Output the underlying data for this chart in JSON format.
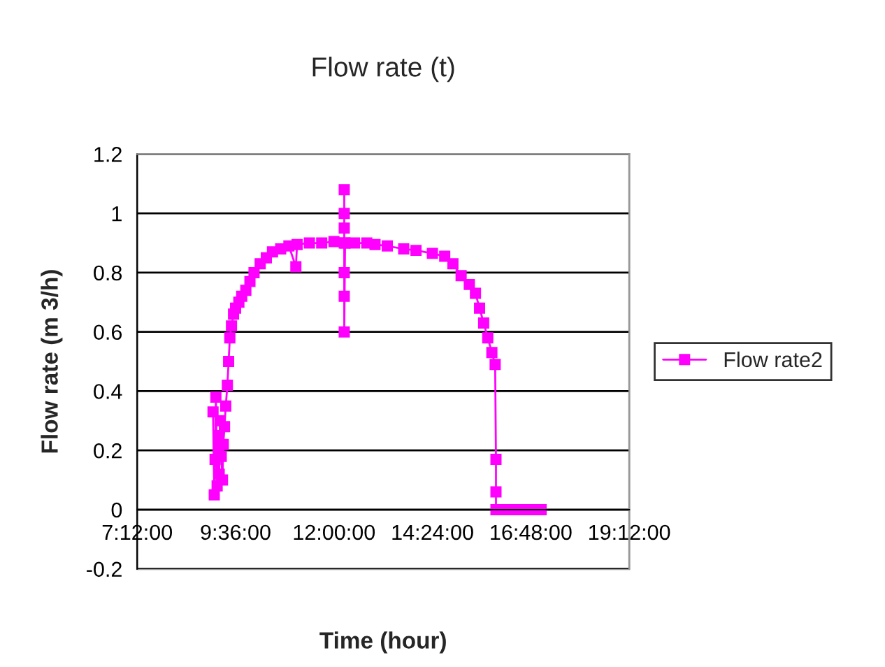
{
  "chart_data": {
    "type": "line",
    "title": "Flow rate (t)",
    "xlabel": "Time (hour)",
    "ylabel": "Flow rate (m 3/h)",
    "xlim": [
      7.2,
      19.2
    ],
    "xticks": [
      {
        "value": 7.2,
        "label": "7:12:00"
      },
      {
        "value": 9.6,
        "label": "9:36:00"
      },
      {
        "value": 12,
        "label": "12:00:00"
      },
      {
        "value": 14.4,
        "label": "14:24:00"
      },
      {
        "value": 16.8,
        "label": "16:48:00"
      },
      {
        "value": 19.2,
        "label": "19:12:00"
      }
    ],
    "ylim": [
      -0.2,
      1.2
    ],
    "yticks": [
      -0.2,
      0,
      0.2,
      0.4,
      0.6,
      0.8,
      1,
      1.2
    ],
    "grid": "y",
    "legend": "right",
    "marker": "square",
    "line_style": "solid",
    "series": [
      {
        "name": "Flow rate2",
        "color": "#ff00ff",
        "x": [
          9.05,
          9.08,
          9.1,
          9.12,
          9.15,
          9.18,
          9.2,
          9.22,
          9.25,
          9.28,
          9.3,
          9.33,
          9.36,
          9.4,
          9.43,
          9.46,
          9.5,
          9.55,
          9.6,
          9.68,
          9.75,
          9.85,
          9.95,
          10.05,
          10.2,
          10.35,
          10.5,
          10.7,
          10.9,
          11.07,
          11.1,
          11.4,
          11.7,
          12.0,
          12.25,
          12.25,
          12.25,
          12.25,
          12.25,
          12.25,
          12.25,
          12.27,
          12.5,
          12.8,
          13.0,
          13.3,
          13.7,
          14.0,
          14.4,
          14.7,
          14.9,
          15.1,
          15.3,
          15.45,
          15.55,
          15.65,
          15.75,
          15.85,
          15.93,
          15.95,
          15.95,
          15.95,
          16.1,
          16.3,
          16.5,
          16.7,
          16.9,
          17.05
        ],
        "values": [
          0.33,
          0.05,
          0.17,
          0.38,
          0.08,
          0.25,
          0.12,
          0.3,
          0.18,
          0.1,
          0.22,
          0.28,
          0.35,
          0.42,
          0.5,
          0.58,
          0.62,
          0.66,
          0.68,
          0.7,
          0.72,
          0.74,
          0.77,
          0.8,
          0.83,
          0.85,
          0.87,
          0.88,
          0.89,
          0.82,
          0.895,
          0.9,
          0.9,
          0.905,
          0.9,
          1.08,
          1.0,
          0.95,
          0.8,
          0.72,
          0.6,
          0.9,
          0.9,
          0.9,
          0.895,
          0.89,
          0.88,
          0.875,
          0.865,
          0.855,
          0.83,
          0.79,
          0.76,
          0.73,
          0.68,
          0.63,
          0.58,
          0.53,
          0.49,
          0.17,
          0.06,
          0.0,
          0,
          0,
          0,
          0,
          0,
          0
        ]
      }
    ]
  }
}
